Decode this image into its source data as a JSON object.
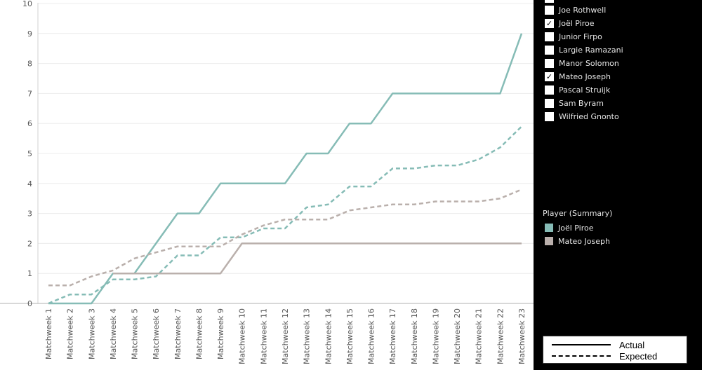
{
  "chart_data": {
    "type": "line",
    "title": "",
    "xlabel": "",
    "ylabel": "",
    "ylim": [
      0,
      10
    ],
    "yticks": [
      0,
      1,
      2,
      3,
      4,
      5,
      6,
      7,
      8,
      9,
      10
    ],
    "grid": true,
    "categories": [
      "Matchweek 1",
      "Matchweek 2",
      "Matchweek 3",
      "Matchweek 4",
      "Matchweek 5",
      "Matchweek 6",
      "Matchweek 7",
      "Matchweek 8",
      "Matchweek 9",
      "Matchweek 10",
      "Matchweek 11",
      "Matchweek 12",
      "Matchweek 13",
      "Matchweek 14",
      "Matchweek 15",
      "Matchweek 16",
      "Matchweek 17",
      "Matchweek 18",
      "Matchweek 19",
      "Matchweek 20",
      "Matchweek 21",
      "Matchweek 22",
      "Matchweek 23"
    ],
    "series": [
      {
        "name": "Joël Piroe",
        "kind": "Actual",
        "color": "#86bcb6",
        "dash": false,
        "values": [
          0,
          0,
          0,
          1,
          1,
          2,
          3,
          3,
          4,
          4,
          4,
          4,
          5,
          5,
          6,
          6,
          7,
          7,
          7,
          7,
          7,
          7,
          9
        ]
      },
      {
        "name": "Joël Piroe",
        "kind": "Expected",
        "color": "#86bcb6",
        "dash": true,
        "values": [
          0,
          0.3,
          0.3,
          0.8,
          0.8,
          0.9,
          1.6,
          1.6,
          2.2,
          2.2,
          2.5,
          2.5,
          3.2,
          3.3,
          3.9,
          3.9,
          4.5,
          4.5,
          4.6,
          4.6,
          4.8,
          5.2,
          5.9
        ]
      },
      {
        "name": "Mateo Joseph",
        "kind": "Actual",
        "color": "#bab0ac",
        "dash": false,
        "values": [
          null,
          null,
          null,
          1,
          1,
          1,
          1,
          1,
          1,
          2,
          2,
          2,
          2,
          2,
          2,
          2,
          2,
          2,
          2,
          2,
          2,
          2,
          2
        ]
      },
      {
        "name": "Mateo Joseph",
        "kind": "Expected",
        "color": "#bab0ac",
        "dash": true,
        "values": [
          0.6,
          0.6,
          0.9,
          1.1,
          1.5,
          1.7,
          1.9,
          1.9,
          1.9,
          2.3,
          2.6,
          2.8,
          2.8,
          2.8,
          3.1,
          3.2,
          3.3,
          3.3,
          3.4,
          3.4,
          3.4,
          3.5,
          3.8
        ]
      }
    ]
  },
  "filter": {
    "items": [
      {
        "label": "Joe Rothwell",
        "checked": false
      },
      {
        "label": "Joël Piroe",
        "checked": true
      },
      {
        "label": "Junior Firpo",
        "checked": false
      },
      {
        "label": "Largie Ramazani",
        "checked": false
      },
      {
        "label": "Manor Solomon",
        "checked": false
      },
      {
        "label": "Mateo Joseph",
        "checked": true
      },
      {
        "label": "Pascal Struijk",
        "checked": false
      },
      {
        "label": "Sam Byram",
        "checked": false
      },
      {
        "label": "Wilfried Gnonto",
        "checked": false
      }
    ]
  },
  "legend": {
    "title": "Player (Summary)",
    "items": [
      {
        "label": "Joël Piroe",
        "color": "#86bcb6"
      },
      {
        "label": "Mateo Joseph",
        "color": "#bab0ac"
      }
    ]
  },
  "line_legend": {
    "actual_label": "Actual",
    "expected_label": "Expected"
  }
}
